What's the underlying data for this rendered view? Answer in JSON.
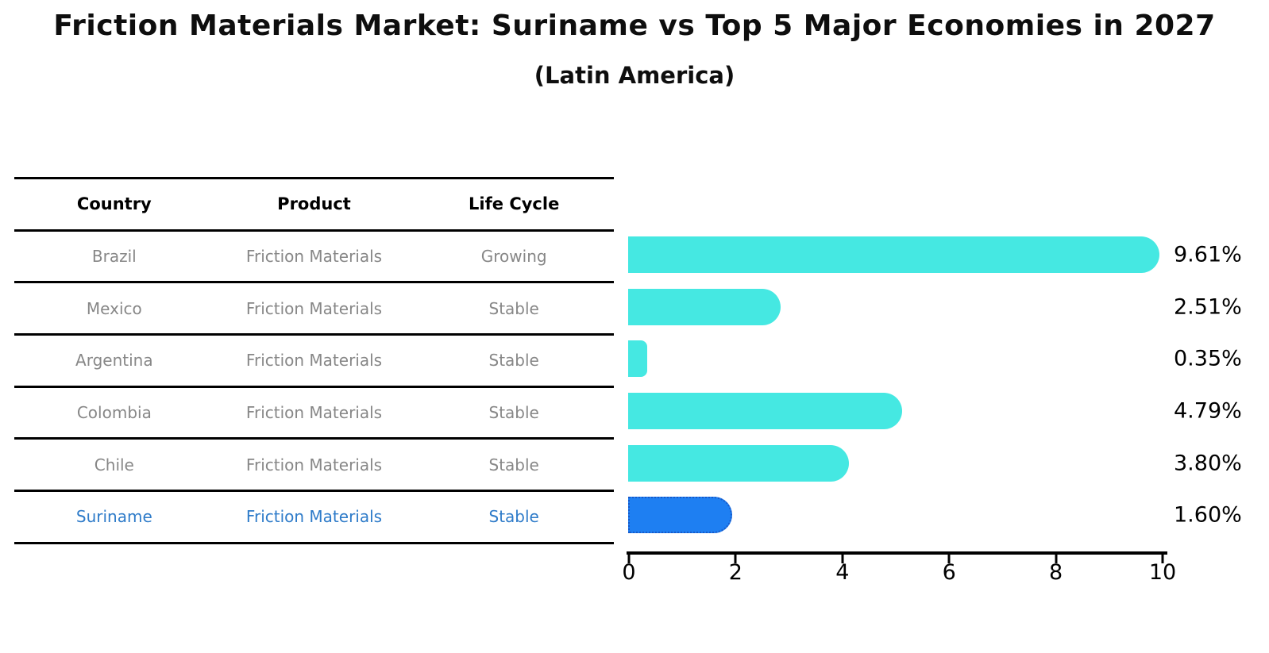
{
  "title": "Friction Materials Market: Suriname vs Top 5 Major Economies in 2027",
  "subtitle": "(Latin America)",
  "table": {
    "columns": [
      "Country",
      "Product",
      "Life Cycle"
    ],
    "rows": [
      {
        "country": "Brazil",
        "product": "Friction Materials",
        "life_cycle": "Growing",
        "highlight": false
      },
      {
        "country": "Mexico",
        "product": "Friction Materials",
        "life_cycle": "Stable",
        "highlight": false
      },
      {
        "country": "Argentina",
        "product": "Friction Materials",
        "life_cycle": "Stable",
        "highlight": false
      },
      {
        "country": "Colombia",
        "product": "Friction Materials",
        "life_cycle": "Stable",
        "highlight": false
      },
      {
        "country": "Chile",
        "product": "Friction Materials",
        "life_cycle": "Stable",
        "highlight": false
      },
      {
        "country": "Suriname",
        "product": "Friction Materials",
        "life_cycle": "Stable",
        "highlight": true
      }
    ]
  },
  "chart_data": {
    "type": "bar",
    "orientation": "horizontal",
    "title": "Friction Materials Market: Suriname vs Top 5 Major Economies in 2027",
    "subtitle": "(Latin America)",
    "categories": [
      "Brazil",
      "Mexico",
      "Argentina",
      "Colombia",
      "Chile",
      "Suriname"
    ],
    "values": [
      9.61,
      2.51,
      0.35,
      4.79,
      3.8,
      1.6
    ],
    "labels": [
      "9.61%",
      "2.51%",
      "0.35%",
      "4.79%",
      "3.80%",
      "1.60%"
    ],
    "xlabel": "",
    "ylabel": "",
    "xlim": [
      0,
      10
    ],
    "xticks": [
      0,
      2,
      4,
      6,
      8,
      10
    ],
    "grid": "off",
    "legend": "none",
    "bar_color": "#45e8e2",
    "highlight_index": 5,
    "highlight_bar_color": "#1e7ff2",
    "highlight_border_color": "#1859c8"
  },
  "colors": {
    "row_text": "#878787",
    "highlight_text": "#2e7bc9",
    "header_text": "#000000",
    "axis": "#000000"
  }
}
